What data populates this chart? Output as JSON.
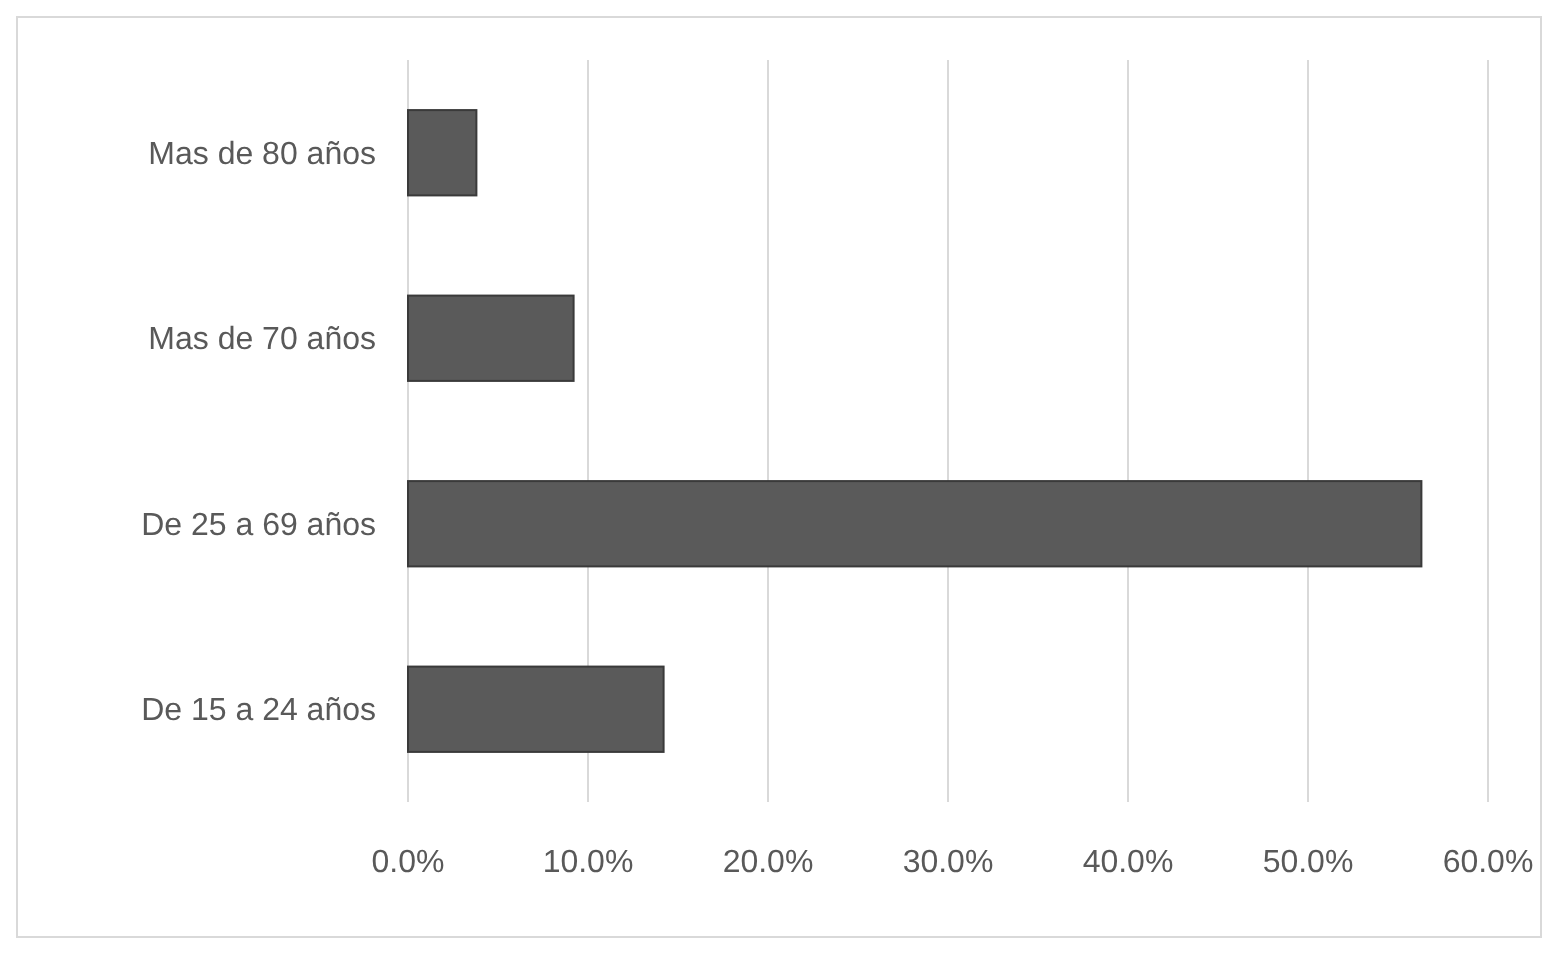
{
  "chart_data": {
    "type": "bar",
    "orientation": "horizontal",
    "categories": [
      "Mas de 80 años",
      "Mas de 70 años",
      "De 25 a 69 años",
      "De 15 a 24 años"
    ],
    "values": [
      3.8,
      9.2,
      56.3,
      14.2
    ],
    "color": "#5a5a5a",
    "xlim": [
      0,
      60
    ],
    "xticks": [
      {
        "value": 0,
        "label": "0.0%"
      },
      {
        "value": 10,
        "label": "10.0%"
      },
      {
        "value": 20,
        "label": "20.0%"
      },
      {
        "value": 30,
        "label": "30.0%"
      },
      {
        "value": 40,
        "label": "40.0%"
      },
      {
        "value": 50,
        "label": "50.0%"
      },
      {
        "value": 60,
        "label": "60.0%"
      }
    ],
    "grid": "x"
  }
}
